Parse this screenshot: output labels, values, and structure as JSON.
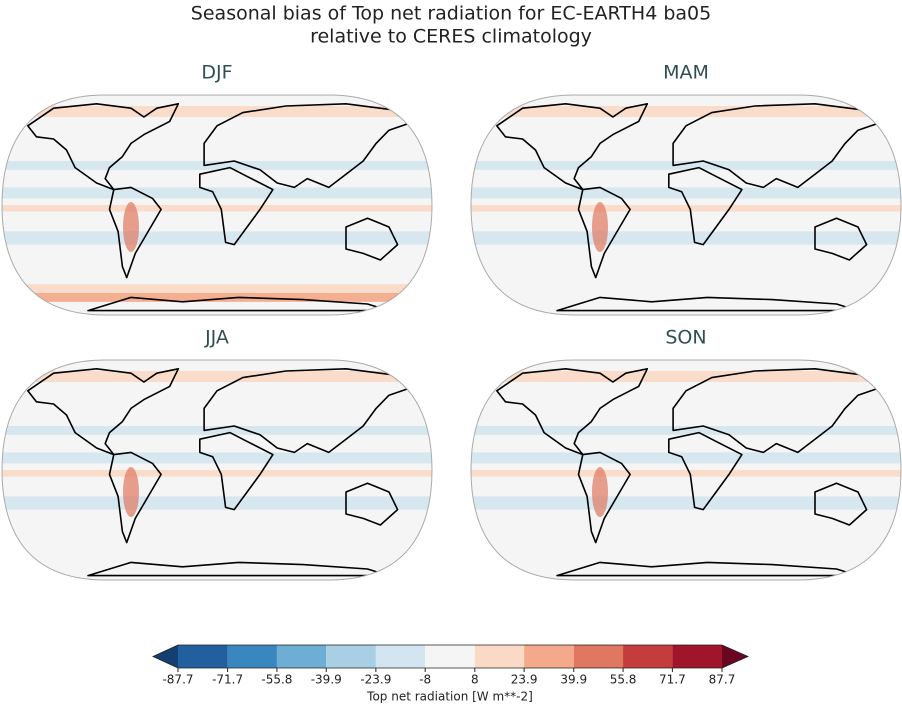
{
  "title": [
    "Seasonal bias of Top net radiation for EC-EARTH4 ba05",
    "relative to CERES climatology"
  ],
  "panels": [
    "DJF",
    "MAM",
    "JJA",
    "SON"
  ],
  "colorbar": {
    "ticks": [
      -87.7,
      -71.7,
      -55.8,
      -39.9,
      -23.9,
      -8.0,
      8.0,
      23.9,
      39.9,
      55.8,
      71.7,
      87.7
    ],
    "colors": [
      "#215f9f",
      "#3a87c0",
      "#6eaed4",
      "#a8cfe4",
      "#d3e5f0",
      "#f5f5f5",
      "#fbd9c7",
      "#f3a98a",
      "#e07760",
      "#c43c3c",
      "#a0152a"
    ],
    "extend_colors": [
      "#143f73",
      "#6a0622"
    ],
    "label": "Top net radiation [W m**-2]"
  }
}
